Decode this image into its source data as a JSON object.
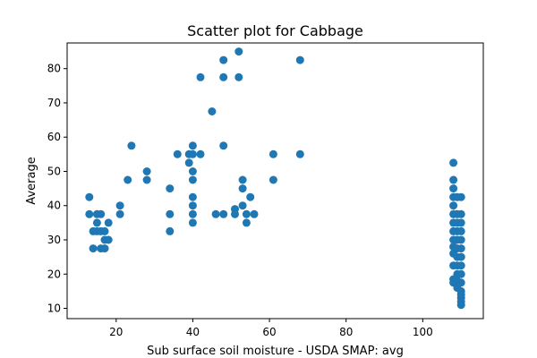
{
  "chart_data": {
    "type": "scatter",
    "title": "Scatter plot for Cabbage",
    "xlabel": "Sub surface soil moisture - USDA SMAP: avg",
    "ylabel": "Average",
    "xlim": [
      7.2,
      115.8
    ],
    "ylim": [
      7.0,
      87.5
    ],
    "xticks": [
      20,
      40,
      60,
      80,
      100
    ],
    "yticks": [
      10,
      20,
      30,
      40,
      50,
      60,
      70,
      80
    ],
    "grid": false,
    "legend": "none",
    "marker_color": "#1f77b4",
    "points": [
      [
        13,
        42.5
      ],
      [
        13,
        37.5
      ],
      [
        14,
        32.5
      ],
      [
        14,
        27.5
      ],
      [
        15,
        37.5
      ],
      [
        15,
        35
      ],
      [
        15,
        32.5
      ],
      [
        16,
        37.5
      ],
      [
        16,
        32.5
      ],
      [
        16,
        27.5
      ],
      [
        17,
        32.5
      ],
      [
        17,
        30
      ],
      [
        17,
        27.5
      ],
      [
        18,
        35
      ],
      [
        18,
        30
      ],
      [
        21,
        40
      ],
      [
        21,
        37.5
      ],
      [
        23,
        47.5
      ],
      [
        24,
        57.5
      ],
      [
        28,
        50
      ],
      [
        28,
        47.5
      ],
      [
        34,
        45
      ],
      [
        34,
        37.5
      ],
      [
        34,
        32.5
      ],
      [
        36,
        55
      ],
      [
        39,
        55
      ],
      [
        39,
        52.5
      ],
      [
        40,
        57.5
      ],
      [
        40,
        55
      ],
      [
        40,
        50
      ],
      [
        40,
        47.5
      ],
      [
        40,
        42.5
      ],
      [
        40,
        40
      ],
      [
        40,
        37.5
      ],
      [
        40,
        35
      ],
      [
        42,
        77.5
      ],
      [
        42,
        55
      ],
      [
        45,
        67.5
      ],
      [
        46,
        37.5
      ],
      [
        48,
        82.5
      ],
      [
        48,
        77.5
      ],
      [
        48,
        57.5
      ],
      [
        48,
        37.5
      ],
      [
        51,
        39
      ],
      [
        51,
        37.5
      ],
      [
        52,
        85
      ],
      [
        52,
        77.5
      ],
      [
        53,
        47.5
      ],
      [
        53,
        45
      ],
      [
        53,
        40
      ],
      [
        54,
        37.5
      ],
      [
        54,
        35
      ],
      [
        55,
        42.5
      ],
      [
        56,
        37.5
      ],
      [
        61,
        55
      ],
      [
        61,
        47.5
      ],
      [
        68,
        82.5
      ],
      [
        68,
        55
      ],
      [
        108,
        52.5
      ],
      [
        108,
        47.5
      ],
      [
        108,
        45
      ],
      [
        108,
        42.5
      ],
      [
        108,
        40
      ],
      [
        108,
        37.5
      ],
      [
        108,
        35
      ],
      [
        108,
        32.5
      ],
      [
        108,
        30
      ],
      [
        108,
        28
      ],
      [
        108,
        26
      ],
      [
        108,
        22.5
      ],
      [
        108,
        18.5
      ],
      [
        108,
        17.5
      ],
      [
        109,
        42.5
      ],
      [
        109,
        37.5
      ],
      [
        109,
        35
      ],
      [
        109,
        32.5
      ],
      [
        109,
        30
      ],
      [
        109,
        27.5
      ],
      [
        109,
        25
      ],
      [
        109,
        22.5
      ],
      [
        109,
        20
      ],
      [
        109,
        18
      ],
      [
        109,
        16
      ],
      [
        110,
        42.5
      ],
      [
        110,
        37.5
      ],
      [
        110,
        35
      ],
      [
        110,
        32.5
      ],
      [
        110,
        30
      ],
      [
        110,
        27.5
      ],
      [
        110,
        25
      ],
      [
        110,
        22.5
      ],
      [
        110,
        20
      ],
      [
        110,
        17.5
      ],
      [
        110,
        15
      ],
      [
        110,
        14
      ],
      [
        110,
        13
      ],
      [
        110,
        12
      ],
      [
        110,
        11
      ]
    ]
  }
}
